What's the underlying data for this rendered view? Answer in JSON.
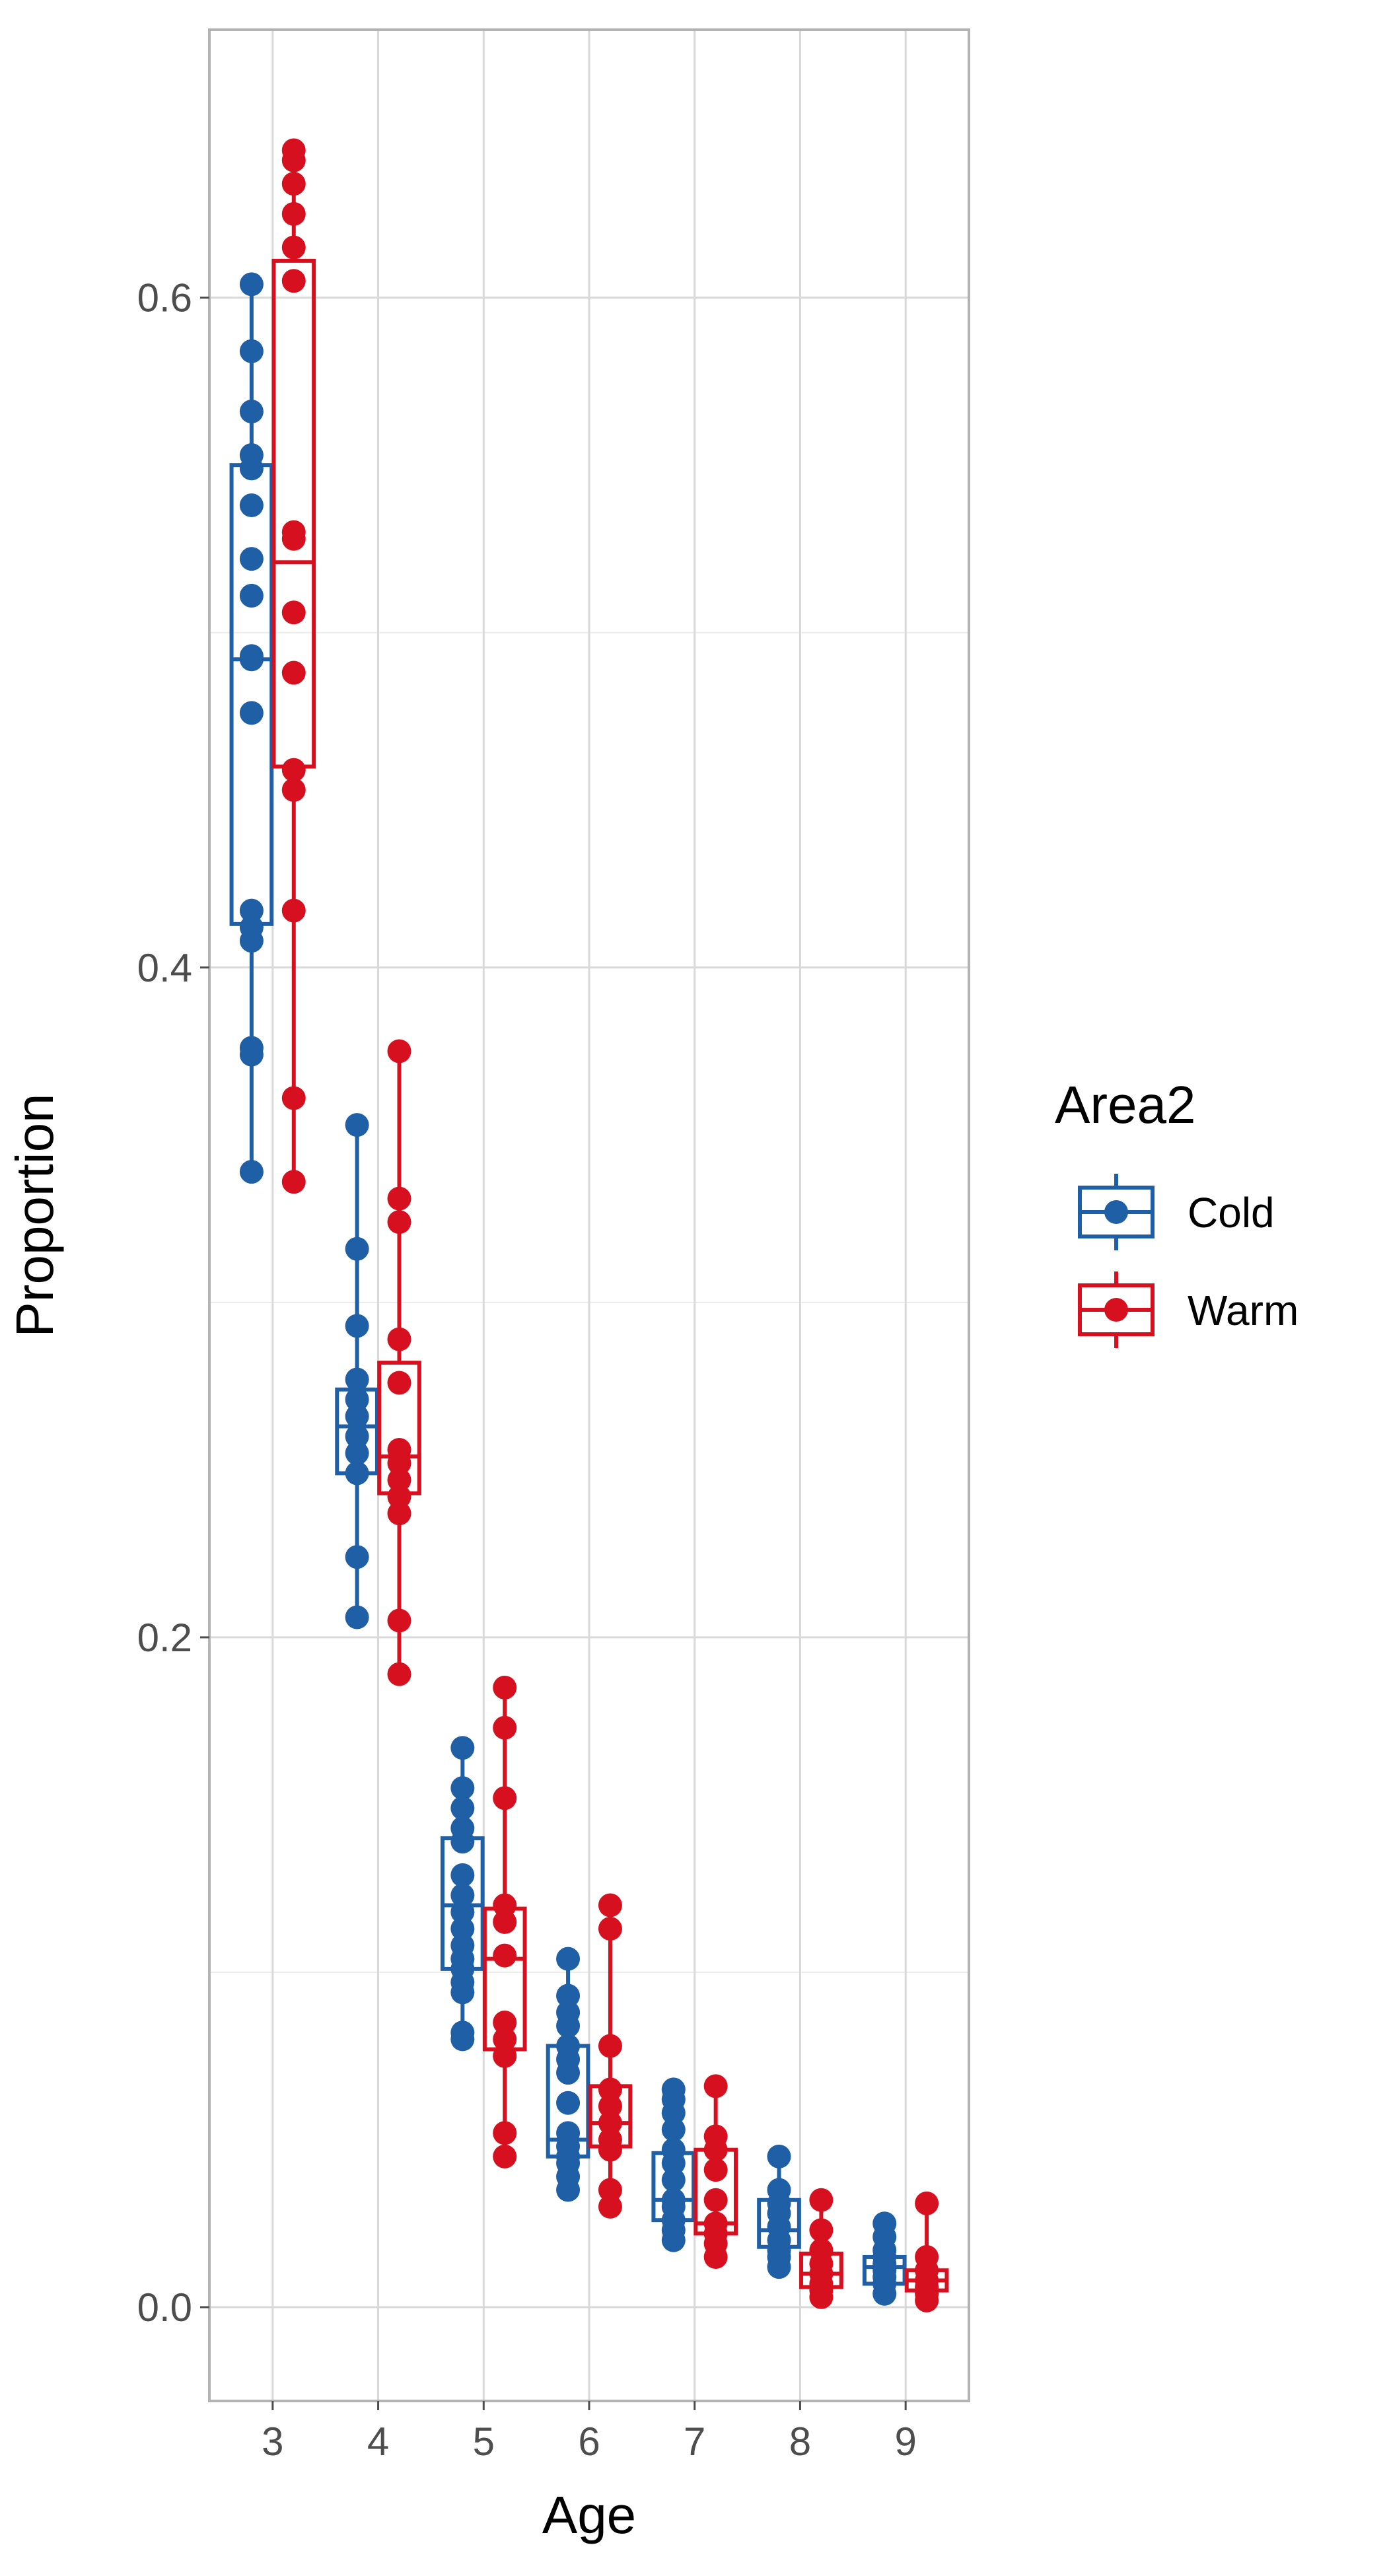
{
  "chart_data": {
    "type": "box",
    "xlabel": "Age",
    "ylabel": "Proportion",
    "categories": [
      "3",
      "4",
      "5",
      "6",
      "7",
      "8",
      "9"
    ],
    "ylim": [
      -0.028,
      0.68
    ],
    "yticks": [
      0.0,
      0.2,
      0.4,
      0.6
    ],
    "ytick_labels": [
      "0.0",
      "0.2",
      "0.4",
      "0.6"
    ],
    "grid": true,
    "legend": {
      "title": "Area2",
      "placement": "right"
    },
    "series": [
      {
        "name": "Cold",
        "color": "#1f5fa6",
        "boxes": [
          {
            "age": "3",
            "whisker_low": 0.339,
            "q1": 0.413,
            "median": 0.492,
            "q3": 0.55,
            "whisker_high": 0.604,
            "points": [
              0.604,
              0.584,
              0.566,
              0.553,
              0.549,
              0.538,
              0.522,
              0.511,
              0.493,
              0.492,
              0.476,
              0.417,
              0.412,
              0.408,
              0.376,
              0.374,
              0.339
            ]
          },
          {
            "age": "4",
            "whisker_low": 0.206,
            "q1": 0.249,
            "median": 0.263,
            "q3": 0.274,
            "whisker_high": 0.353,
            "points": [
              0.353,
              0.316,
              0.293,
              0.277,
              0.271,
              0.266,
              0.26,
              0.255,
              0.249,
              0.224,
              0.206
            ]
          },
          {
            "age": "5",
            "whisker_low": 0.08,
            "q1": 0.101,
            "median": 0.12,
            "q3": 0.14,
            "whisker_high": 0.167,
            "points": [
              0.167,
              0.155,
              0.149,
              0.143,
              0.139,
              0.129,
              0.123,
              0.118,
              0.113,
              0.108,
              0.104,
              0.101,
              0.097,
              0.094,
              0.082,
              0.08
            ]
          },
          {
            "age": "6",
            "whisker_low": 0.035,
            "q1": 0.045,
            "median": 0.05,
            "q3": 0.078,
            "whisker_high": 0.104,
            "points": [
              0.104,
              0.093,
              0.088,
              0.084,
              0.078,
              0.074,
              0.07,
              0.061,
              0.052,
              0.048,
              0.045,
              0.043,
              0.039,
              0.035
            ]
          },
          {
            "age": "7",
            "whisker_low": 0.02,
            "q1": 0.026,
            "median": 0.032,
            "q3": 0.046,
            "whisker_high": 0.065,
            "points": [
              0.065,
              0.062,
              0.058,
              0.053,
              0.047,
              0.043,
              0.038,
              0.032,
              0.03,
              0.026,
              0.023,
              0.02
            ]
          },
          {
            "age": "8",
            "whisker_low": 0.012,
            "q1": 0.018,
            "median": 0.023,
            "q3": 0.032,
            "whisker_high": 0.045,
            "points": [
              0.045,
              0.035,
              0.031,
              0.028,
              0.024,
              0.02,
              0.017,
              0.015,
              0.012
            ]
          },
          {
            "age": "9",
            "whisker_low": 0.004,
            "q1": 0.007,
            "median": 0.012,
            "q3": 0.015,
            "whisker_high": 0.025,
            "points": [
              0.025,
              0.021,
              0.017,
              0.015,
              0.013,
              0.011,
              0.009,
              0.007,
              0.004
            ]
          }
        ]
      },
      {
        "name": "Warm",
        "color": "#d7101f",
        "boxes": [
          {
            "age": "3",
            "whisker_low": 0.336,
            "q1": 0.46,
            "median": 0.521,
            "q3": 0.611,
            "whisker_high": 0.644,
            "points": [
              0.644,
              0.641,
              0.634,
              0.625,
              0.615,
              0.605,
              0.53,
              0.528,
              0.506,
              0.488,
              0.459,
              0.453,
              0.417,
              0.361,
              0.336
            ]
          },
          {
            "age": "4",
            "whisker_low": 0.189,
            "q1": 0.243,
            "median": 0.254,
            "q3": 0.282,
            "whisker_high": 0.375,
            "points": [
              0.375,
              0.331,
              0.324,
              0.289,
              0.276,
              0.256,
              0.252,
              0.247,
              0.242,
              0.237,
              0.205,
              0.189
            ]
          },
          {
            "age": "5",
            "whisker_low": 0.045,
            "q1": 0.077,
            "median": 0.104,
            "q3": 0.119,
            "whisker_high": 0.185,
            "points": [
              0.185,
              0.173,
              0.152,
              0.12,
              0.115,
              0.105,
              0.085,
              0.08,
              0.075,
              0.052,
              0.045
            ]
          },
          {
            "age": "6",
            "whisker_low": 0.03,
            "q1": 0.048,
            "median": 0.055,
            "q3": 0.066,
            "whisker_high": 0.12,
            "points": [
              0.12,
              0.113,
              0.078,
              0.065,
              0.06,
              0.055,
              0.05,
              0.047,
              0.035,
              0.03
            ]
          },
          {
            "age": "7",
            "whisker_low": 0.015,
            "q1": 0.022,
            "median": 0.025,
            "q3": 0.047,
            "whisker_high": 0.066,
            "points": [
              0.066,
              0.051,
              0.047,
              0.041,
              0.032,
              0.025,
              0.022,
              0.019,
              0.015
            ]
          },
          {
            "age": "8",
            "whisker_low": 0.003,
            "q1": 0.006,
            "median": 0.01,
            "q3": 0.016,
            "whisker_high": 0.032,
            "points": [
              0.032,
              0.023,
              0.017,
              0.013,
              0.01,
              0.007,
              0.005,
              0.003
            ]
          },
          {
            "age": "9",
            "whisker_low": 0.002,
            "q1": 0.005,
            "median": 0.008,
            "q3": 0.011,
            "whisker_high": 0.031,
            "points": [
              0.031,
              0.015,
              0.011,
              0.008,
              0.006,
              0.004,
              0.002
            ]
          }
        ]
      }
    ]
  }
}
